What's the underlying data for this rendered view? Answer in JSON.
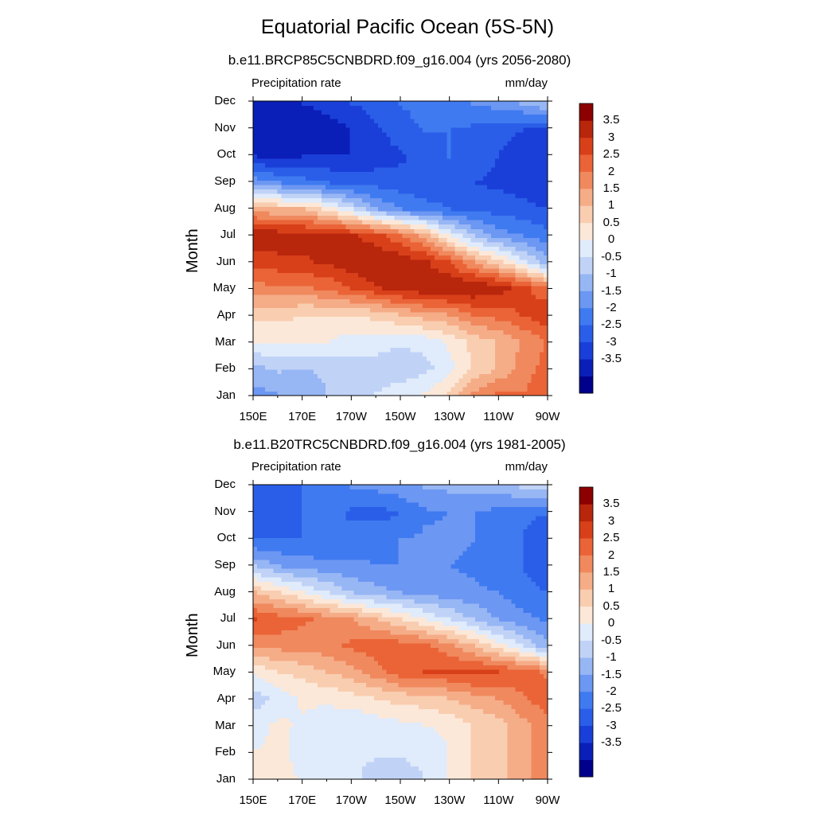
{
  "page": {
    "title": "Equatorial Pacific Ocean (5S-5N)"
  },
  "colors": {
    "scale": [
      "#00008b",
      "#0a1fb8",
      "#1a3fd8",
      "#2a5ee8",
      "#3f7af0",
      "#6c97f2",
      "#97b6f4",
      "#c0d3f7",
      "#e0ebfb",
      "#fce8d8",
      "#f9cdb0",
      "#f5ad88",
      "#f0895e",
      "#ea6437",
      "#d8401a",
      "#b8260c",
      "#8b0000"
    ]
  },
  "chart_data": [
    {
      "type": "heatmap",
      "title": "b.e11.BRCP85C5CNBDRD.f09_g16.004 (yrs 2056-2080)",
      "variable": "Precipitation rate",
      "units": "mm/day",
      "ylabel": "Month",
      "xlabel": "",
      "x_ticks": [
        "150E",
        "170E",
        "170W",
        "150W",
        "130W",
        "110W",
        "90W"
      ],
      "y_ticks": [
        "Jan",
        "Feb",
        "Mar",
        "Apr",
        "May",
        "Jun",
        "Jul",
        "Aug",
        "Sep",
        "Oct",
        "Nov",
        "Dec"
      ],
      "xlim": [
        150,
        270
      ],
      "colorbar_labels": [
        "3.5",
        "3",
        "2.5",
        "2",
        "1.5",
        "1",
        "0.5",
        "0",
        "-0.5",
        "-1",
        "-1.5",
        "-2",
        "-2.5",
        "-3",
        "-3.5"
      ],
      "color_levels": [
        -3.5,
        -3,
        -2.5,
        -2,
        -1.5,
        -1,
        -0.5,
        0,
        0.5,
        1,
        1.5,
        2,
        2.5,
        3,
        3.5
      ],
      "rows": [
        [
          -1.2,
          -1.0,
          -0.8,
          -0.5,
          -0.3,
          0.0,
          0.2,
          0.5,
          1.0,
          2.0,
          2.5,
          2.5,
          2.7
        ],
        [
          -0.6,
          -0.4,
          -0.5,
          -0.4,
          -0.3,
          -0.2,
          -0.3,
          -0.2,
          0.3,
          1.0,
          1.5,
          2.2,
          2.7
        ],
        [
          0.5,
          0.6,
          0.5,
          0.5,
          0.3,
          0.2,
          0.1,
          0.2,
          0.6,
          1.2,
          1.5,
          2.0,
          2.5
        ],
        [
          1.2,
          1.2,
          1.0,
          1.0,
          1.0,
          1.2,
          1.5,
          1.8,
          2.0,
          2.5,
          2.7,
          3.0,
          3.4
        ],
        [
          2.3,
          2.4,
          2.4,
          2.6,
          3.0,
          3.4,
          3.7,
          3.9,
          4.0,
          4.0,
          3.8,
          3.3,
          2.6
        ],
        [
          3.2,
          3.3,
          3.4,
          3.6,
          3.9,
          4.0,
          3.9,
          3.6,
          3.0,
          2.0,
          1.2,
          0.3,
          -0.8
        ],
        [
          4.0,
          3.9,
          3.8,
          3.8,
          3.6,
          3.2,
          2.6,
          1.8,
          0.5,
          -0.5,
          -1.2,
          -1.5,
          -1.8
        ],
        [
          1.8,
          1.5,
          1.5,
          0.8,
          0.0,
          -1.0,
          -1.5,
          -1.8,
          -2.0,
          -2.2,
          -2.2,
          -2.3,
          -2.5
        ],
        [
          -1.2,
          -1.5,
          -1.8,
          -2.0,
          -2.2,
          -2.2,
          -2.3,
          -2.4,
          -2.3,
          -2.5,
          -2.6,
          -2.8,
          -3.0
        ],
        [
          -3.0,
          -3.2,
          -3.0,
          -3.0,
          -3.0,
          -2.8,
          -2.6,
          -2.3,
          -2.0,
          -2.2,
          -2.5,
          -2.8,
          -3.0
        ],
        [
          -3.3,
          -3.4,
          -3.4,
          -3.3,
          -3.0,
          -2.6,
          -2.2,
          -2.0,
          -2.0,
          -2.1,
          -2.3,
          -2.5,
          -2.7
        ],
        [
          -3.4,
          -3.2,
          -3.0,
          -2.8,
          -2.5,
          -2.3,
          -2.0,
          -1.8,
          -1.6,
          -1.5,
          -1.3,
          -1.0,
          -0.6
        ]
      ]
    },
    {
      "type": "heatmap",
      "title": "b.e11.B20TRC5CNBDRD.f09_g16.004 (yrs 1981-2005)",
      "variable": "Precipitation rate",
      "units": "mm/day",
      "ylabel": "Month",
      "xlabel": "",
      "x_ticks": [
        "150E",
        "170E",
        "170W",
        "150W",
        "130W",
        "110W",
        "90W"
      ],
      "y_ticks": [
        "Jan",
        "Feb",
        "Mar",
        "Apr",
        "May",
        "Jun",
        "Jul",
        "Aug",
        "Sep",
        "Oct",
        "Nov",
        "Dec"
      ],
      "xlim": [
        150,
        270
      ],
      "colorbar_labels": [
        "3.5",
        "3",
        "2.5",
        "2",
        "1.5",
        "1",
        "0.5",
        "0",
        "-0.5",
        "-1",
        "-1.5",
        "-2",
        "-2.5",
        "-3",
        "-3.5"
      ],
      "color_levels": [
        -3.5,
        -3,
        -2.5,
        -2,
        -1.5,
        -1,
        -0.5,
        0,
        0.5,
        1,
        1.5,
        2,
        2.5,
        3,
        3.5
      ],
      "rows": [
        [
          0.6,
          0.7,
          0.4,
          0.2,
          0.1,
          -0.2,
          -0.3,
          0.0,
          0.5,
          1.0,
          1.3,
          1.8,
          2.2
        ],
        [
          0.5,
          0.6,
          0.3,
          0.2,
          0.1,
          0.1,
          0.1,
          0.2,
          0.5,
          1.0,
          1.3,
          1.8,
          2.2
        ],
        [
          0.3,
          0.6,
          0.4,
          0.2,
          0.1,
          0.2,
          0.4,
          0.5,
          0.6,
          1.0,
          1.3,
          1.8,
          2.3
        ],
        [
          -0.3,
          0.2,
          0.6,
          0.6,
          0.8,
          1.0,
          1.2,
          1.3,
          1.5,
          1.8,
          2.0,
          2.4,
          2.8
        ],
        [
          0.6,
          1.0,
          1.2,
          1.5,
          1.8,
          2.3,
          2.8,
          3.0,
          3.0,
          3.2,
          3.0,
          2.8,
          2.4
        ],
        [
          2.0,
          2.2,
          2.2,
          2.3,
          2.6,
          2.8,
          2.8,
          2.6,
          2.2,
          1.5,
          0.8,
          0.0,
          -0.8
        ],
        [
          3.0,
          2.8,
          2.6,
          2.3,
          2.0,
          1.5,
          1.0,
          0.5,
          0.0,
          -0.5,
          -1.0,
          -1.3,
          -1.6
        ],
        [
          1.5,
          1.0,
          0.5,
          0.0,
          -0.5,
          -0.8,
          -1.0,
          -1.2,
          -1.3,
          -1.4,
          -1.5,
          -1.8,
          -2.0
        ],
        [
          -0.5,
          -1.0,
          -1.2,
          -1.3,
          -1.4,
          -1.5,
          -1.5,
          -1.5,
          -1.5,
          -1.6,
          -1.8,
          -2.0,
          -2.3
        ],
        [
          -2.0,
          -2.0,
          -2.0,
          -2.0,
          -1.8,
          -1.6,
          -1.5,
          -1.4,
          -1.4,
          -1.5,
          -1.8,
          -2.0,
          -2.3
        ],
        [
          -2.2,
          -2.3,
          -2.0,
          -1.8,
          -2.1,
          -2.2,
          -2.0,
          -1.6,
          -1.5,
          -1.5,
          -1.7,
          -1.9,
          -2.0
        ],
        [
          -2.3,
          -2.2,
          -2.0,
          -1.7,
          -1.5,
          -1.4,
          -1.2,
          -1.0,
          -0.9,
          -0.8,
          -0.7,
          -0.5,
          -0.3
        ]
      ]
    }
  ]
}
